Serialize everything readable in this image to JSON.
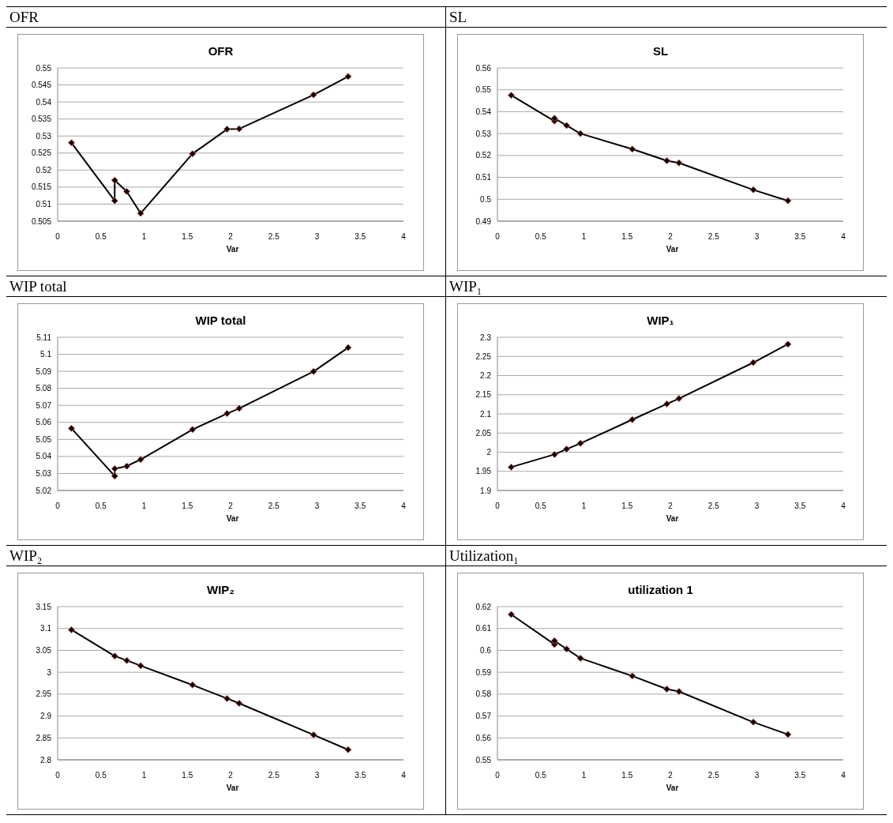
{
  "chart_data": [
    {
      "type": "line",
      "title": "OFR",
      "xlabel": "Var",
      "annotations": [
        "OFR"
      ],
      "x": [
        0.16,
        0.66,
        0.66,
        0.8,
        0.96,
        1.56,
        1.96,
        2.1,
        2.96,
        3.36
      ],
      "series": [
        {
          "color": "#000000",
          "values": [
            0.528,
            0.511,
            0.517,
            0.5137,
            0.5073,
            0.5248,
            0.532,
            0.5321,
            0.5421,
            0.5475
          ]
        }
      ],
      "xlim": [
        0,
        4
      ],
      "xticks": [
        0,
        0.5,
        1,
        1.5,
        2,
        2.5,
        3,
        3.5,
        4
      ],
      "ylim": [
        0.505,
        0.55
      ],
      "yticks": [
        0.505,
        0.51,
        0.515,
        0.52,
        0.525,
        0.53,
        0.535,
        0.54,
        0.545,
        0.55
      ],
      "grid": "y",
      "marker": "diamond",
      "line_style": "solid"
    },
    {
      "type": "line",
      "title": "SL",
      "xlabel": "Var",
      "annotations": [
        "SL"
      ],
      "x": [
        0.16,
        0.66,
        0.66,
        0.8,
        0.96,
        1.56,
        1.96,
        2.1,
        2.96,
        3.36
      ],
      "series": [
        {
          "color": "#000000",
          "values": [
            0.5475,
            0.5357,
            0.537,
            0.5337,
            0.53,
            0.5229,
            0.5176,
            0.5166,
            0.5043,
            0.4993
          ]
        }
      ],
      "xlim": [
        0,
        4
      ],
      "xticks": [
        0,
        0.5,
        1,
        1.5,
        2,
        2.5,
        3,
        3.5,
        4
      ],
      "ylim": [
        0.49,
        0.56
      ],
      "yticks": [
        0.49,
        0.5,
        0.51,
        0.52,
        0.53,
        0.54,
        0.55,
        0.56
      ],
      "grid": "y",
      "marker": "diamond",
      "line_style": "solid"
    },
    {
      "type": "line",
      "title": "WIP total",
      "xlabel": "Var",
      "annotations": [
        "WIP total"
      ],
      "x": [
        0.16,
        0.66,
        0.66,
        0.8,
        0.96,
        1.56,
        1.96,
        2.1,
        2.96,
        3.36
      ],
      "series": [
        {
          "color": "#000000",
          "values": [
            5.0565,
            5.0285,
            5.0328,
            5.0343,
            5.0382,
            5.0558,
            5.0652,
            5.0682,
            5.0899,
            5.1039
          ]
        }
      ],
      "xlim": [
        0,
        4
      ],
      "xticks": [
        0,
        0.5,
        1,
        1.5,
        2,
        2.5,
        3,
        3.5,
        4
      ],
      "ylim": [
        5.02,
        5.11
      ],
      "yticks": [
        5.02,
        5.03,
        5.04,
        5.05,
        5.06,
        5.07,
        5.08,
        5.09,
        5.1,
        5.11
      ],
      "grid": "y",
      "marker": "diamond",
      "line_style": "solid"
    },
    {
      "type": "line",
      "title": "WIP₁",
      "xlabel": "Var",
      "annotations": [
        "WIP₁"
      ],
      "series": [
        {
          "color": "#000000",
          "x": [
            0.16,
            0.66,
            0.8,
            0.96,
            1.56,
            1.96,
            2.1,
            2.96,
            3.36
          ],
          "values": [
            1.961,
            1.994,
            2.008,
            2.023,
            2.085,
            2.126,
            2.14,
            2.234,
            2.282
          ]
        }
      ],
      "xlim": [
        0,
        4
      ],
      "xticks": [
        0,
        0.5,
        1,
        1.5,
        2,
        2.5,
        3,
        3.5,
        4
      ],
      "ylim": [
        1.9,
        2.3
      ],
      "yticks": [
        1.9,
        1.95,
        2,
        2.05,
        2.1,
        2.15,
        2.2,
        2.25,
        2.3
      ],
      "grid": "y",
      "marker": "diamond",
      "line_style": "solid"
    },
    {
      "type": "line",
      "title": "WIP₂",
      "xlabel": "Var",
      "annotations": [
        "WIP₂"
      ],
      "series": [
        {
          "color": "#000000",
          "x": [
            0.16,
            0.66,
            0.8,
            0.96,
            1.56,
            1.96,
            2.1,
            2.96,
            3.36
          ],
          "values": [
            3.097,
            3.037,
            3.027,
            3.015,
            2.971,
            2.94,
            2.929,
            2.857,
            2.823
          ]
        }
      ],
      "xlim": [
        0,
        4
      ],
      "xticks": [
        0,
        0.5,
        1,
        1.5,
        2,
        2.5,
        3,
        3.5,
        4
      ],
      "ylim": [
        2.8,
        3.15
      ],
      "yticks": [
        2.8,
        2.85,
        2.9,
        2.95,
        3,
        3.05,
        3.1,
        3.15
      ],
      "grid": "y",
      "marker": "diamond",
      "line_style": "solid"
    },
    {
      "type": "line",
      "title": "utilization 1",
      "xlabel": "Var",
      "annotations": [
        "Utilization₁"
      ],
      "x": [
        0.16,
        0.66,
        0.66,
        0.8,
        0.96,
        1.56,
        1.96,
        2.1,
        2.96,
        3.36
      ],
      "series": [
        {
          "color": "#000000",
          "values": [
            0.6164,
            0.6027,
            0.6044,
            0.6006,
            0.5964,
            0.5883,
            0.5823,
            0.5812,
            0.5672,
            0.5616
          ]
        }
      ],
      "xlim": [
        0,
        4
      ],
      "xticks": [
        0,
        0.5,
        1,
        1.5,
        2,
        2.5,
        3,
        3.5,
        4
      ],
      "ylim": [
        0.55,
        0.62
      ],
      "yticks": [
        0.55,
        0.56,
        0.57,
        0.58,
        0.59,
        0.6,
        0.61,
        0.62
      ],
      "grid": "y",
      "marker": "diamond",
      "line_style": "solid"
    }
  ]
}
